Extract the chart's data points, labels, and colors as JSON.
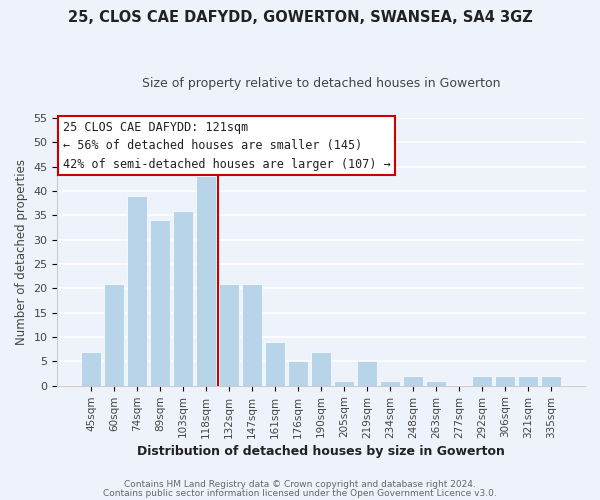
{
  "title1": "25, CLOS CAE DAFYDD, GOWERTON, SWANSEA, SA4 3GZ",
  "title2": "Size of property relative to detached houses in Gowerton",
  "xlabel": "Distribution of detached houses by size in Gowerton",
  "ylabel": "Number of detached properties",
  "bar_labels": [
    "45sqm",
    "60sqm",
    "74sqm",
    "89sqm",
    "103sqm",
    "118sqm",
    "132sqm",
    "147sqm",
    "161sqm",
    "176sqm",
    "190sqm",
    "205sqm",
    "219sqm",
    "234sqm",
    "248sqm",
    "263sqm",
    "277sqm",
    "292sqm",
    "306sqm",
    "321sqm",
    "335sqm"
  ],
  "bar_values": [
    7,
    21,
    39,
    34,
    36,
    43,
    21,
    21,
    9,
    5,
    7,
    1,
    5,
    1,
    2,
    1,
    0,
    2,
    2,
    2,
    2
  ],
  "bar_color": "#b8d4e8",
  "vline_color": "#cc0000",
  "vline_bar_index": 5,
  "ylim": [
    0,
    55
  ],
  "yticks": [
    0,
    5,
    10,
    15,
    20,
    25,
    30,
    35,
    40,
    45,
    50,
    55
  ],
  "annotation_title": "25 CLOS CAE DAFYDD: 121sqm",
  "annotation_line1": "← 56% of detached houses are smaller (145)",
  "annotation_line2": "42% of semi-detached houses are larger (107) →",
  "annotation_box_facecolor": "#ffffff",
  "annotation_box_edgecolor": "#cc0000",
  "footer1": "Contains HM Land Registry data © Crown copyright and database right 2024.",
  "footer2": "Contains public sector information licensed under the Open Government Licence v3.0.",
  "bg_color": "#eef2fb",
  "title1_fontsize": 10.5,
  "title2_fontsize": 9,
  "ylabel_fontsize": 8.5,
  "xlabel_fontsize": 9
}
